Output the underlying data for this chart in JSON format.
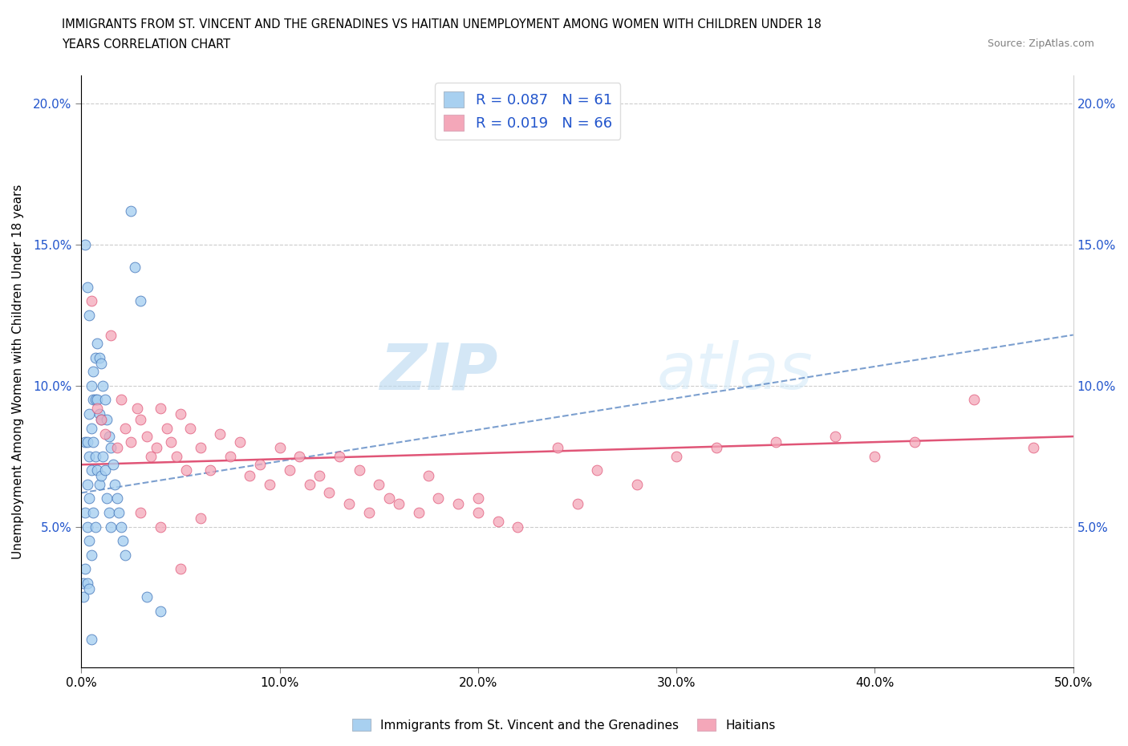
{
  "title_line1": "IMMIGRANTS FROM ST. VINCENT AND THE GRENADINES VS HAITIAN UNEMPLOYMENT AMONG WOMEN WITH CHILDREN UNDER 18",
  "title_line2": "YEARS CORRELATION CHART",
  "source_text": "Source: ZipAtlas.com",
  "ylabel": "Unemployment Among Women with Children Under 18 years",
  "legend_label1": "Immigrants from St. Vincent and the Grenadines",
  "legend_label2": "Haitians",
  "r1": 0.087,
  "n1": 61,
  "r2": 0.019,
  "n2": 66,
  "watermark_zip": "ZIP",
  "watermark_atlas": "atlas",
  "color1": "#a8d0f0",
  "color2": "#f4a7b9",
  "trendline1_color": "#4477bb",
  "trendline2_color": "#e05577",
  "text_color_r": "#2255cc",
  "xlim": [
    0.0,
    0.5
  ],
  "ylim": [
    0.0,
    0.21
  ],
  "xticks": [
    0.0,
    0.1,
    0.2,
    0.3,
    0.4,
    0.5
  ],
  "xtick_labels": [
    "0.0%",
    "10.0%",
    "20.0%",
    "30.0%",
    "40.0%",
    "50.0%"
  ],
  "ytick_positions": [
    0.05,
    0.1,
    0.15,
    0.2
  ],
  "ytick_labels": [
    "5.0%",
    "10.0%",
    "15.0%",
    "20.0%"
  ],
  "scatter1_x": [
    0.001,
    0.001,
    0.002,
    0.002,
    0.002,
    0.003,
    0.003,
    0.003,
    0.003,
    0.004,
    0.004,
    0.004,
    0.004,
    0.004,
    0.005,
    0.005,
    0.005,
    0.005,
    0.006,
    0.006,
    0.006,
    0.006,
    0.007,
    0.007,
    0.007,
    0.007,
    0.008,
    0.008,
    0.008,
    0.009,
    0.009,
    0.009,
    0.01,
    0.01,
    0.01,
    0.011,
    0.011,
    0.012,
    0.012,
    0.013,
    0.013,
    0.014,
    0.014,
    0.015,
    0.015,
    0.016,
    0.017,
    0.018,
    0.019,
    0.02,
    0.021,
    0.022,
    0.025,
    0.027,
    0.03,
    0.033,
    0.04,
    0.002,
    0.003,
    0.004,
    0.005
  ],
  "scatter1_y": [
    0.03,
    0.025,
    0.08,
    0.055,
    0.035,
    0.08,
    0.065,
    0.05,
    0.03,
    0.09,
    0.075,
    0.06,
    0.045,
    0.028,
    0.1,
    0.085,
    0.07,
    0.04,
    0.105,
    0.095,
    0.08,
    0.055,
    0.11,
    0.095,
    0.075,
    0.05,
    0.115,
    0.095,
    0.07,
    0.11,
    0.09,
    0.065,
    0.108,
    0.088,
    0.068,
    0.1,
    0.075,
    0.095,
    0.07,
    0.088,
    0.06,
    0.082,
    0.055,
    0.078,
    0.05,
    0.072,
    0.065,
    0.06,
    0.055,
    0.05,
    0.045,
    0.04,
    0.162,
    0.142,
    0.13,
    0.025,
    0.02,
    0.15,
    0.135,
    0.125,
    0.01
  ],
  "scatter2_x": [
    0.005,
    0.008,
    0.01,
    0.012,
    0.015,
    0.018,
    0.02,
    0.022,
    0.025,
    0.028,
    0.03,
    0.033,
    0.035,
    0.038,
    0.04,
    0.043,
    0.045,
    0.048,
    0.05,
    0.053,
    0.055,
    0.06,
    0.065,
    0.07,
    0.075,
    0.08,
    0.085,
    0.09,
    0.095,
    0.1,
    0.105,
    0.11,
    0.115,
    0.12,
    0.125,
    0.13,
    0.135,
    0.14,
    0.145,
    0.15,
    0.155,
    0.16,
    0.17,
    0.175,
    0.18,
    0.19,
    0.2,
    0.21,
    0.22,
    0.24,
    0.26,
    0.28,
    0.3,
    0.32,
    0.35,
    0.38,
    0.4,
    0.42,
    0.45,
    0.48,
    0.03,
    0.04,
    0.06,
    0.2,
    0.25,
    0.05
  ],
  "scatter2_y": [
    0.13,
    0.092,
    0.088,
    0.083,
    0.118,
    0.078,
    0.095,
    0.085,
    0.08,
    0.092,
    0.088,
    0.082,
    0.075,
    0.078,
    0.092,
    0.085,
    0.08,
    0.075,
    0.09,
    0.07,
    0.085,
    0.078,
    0.07,
    0.083,
    0.075,
    0.08,
    0.068,
    0.072,
    0.065,
    0.078,
    0.07,
    0.075,
    0.065,
    0.068,
    0.062,
    0.075,
    0.058,
    0.07,
    0.055,
    0.065,
    0.06,
    0.058,
    0.055,
    0.068,
    0.06,
    0.058,
    0.055,
    0.052,
    0.05,
    0.078,
    0.07,
    0.065,
    0.075,
    0.078,
    0.08,
    0.082,
    0.075,
    0.08,
    0.095,
    0.078,
    0.055,
    0.05,
    0.053,
    0.06,
    0.058,
    0.035
  ],
  "trendline1_x": [
    0.0,
    0.5
  ],
  "trendline1_y": [
    0.062,
    0.118
  ],
  "trendline2_x": [
    0.0,
    0.5
  ],
  "trendline2_y": [
    0.072,
    0.082
  ]
}
